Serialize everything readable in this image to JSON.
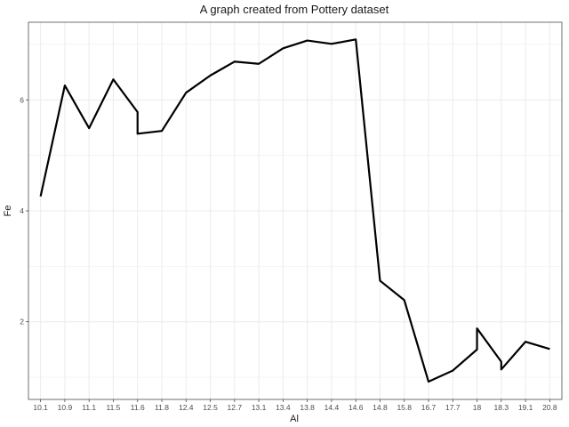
{
  "chart_data": {
    "type": "line",
    "title": "A graph created from Pottery dataset",
    "xlabel": "Al",
    "ylabel": "Fe",
    "x_scale": "categorical",
    "categories": [
      "10.1",
      "10.9",
      "11.1",
      "11.5",
      "11.6",
      "11.8",
      "12.4",
      "12.5",
      "12.7",
      "13.1",
      "13.4",
      "13.8",
      "14.4",
      "14.6",
      "14.8",
      "15.8",
      "16.7",
      "17.7",
      "18",
      "18.3",
      "19.1",
      "20.8"
    ],
    "points": [
      {
        "x": "10.1",
        "y": 4.26
      },
      {
        "x": "10.9",
        "y": 6.26
      },
      {
        "x": "11.1",
        "y": 5.49
      },
      {
        "x": "11.5",
        "y": 6.37
      },
      {
        "x": "11.6",
        "y": 5.78
      },
      {
        "x": "11.6",
        "y": 5.39
      },
      {
        "x": "11.8",
        "y": 5.44
      },
      {
        "x": "12.4",
        "y": 6.13
      },
      {
        "x": "12.5",
        "y": 6.44
      },
      {
        "x": "12.7",
        "y": 6.69
      },
      {
        "x": "13.1",
        "y": 6.65
      },
      {
        "x": "13.4",
        "y": 6.93
      },
      {
        "x": "13.8",
        "y": 7.07
      },
      {
        "x": "14.4",
        "y": 7.01
      },
      {
        "x": "14.6",
        "y": 7.09
      },
      {
        "x": "14.8",
        "y": 2.74
      },
      {
        "x": "15.8",
        "y": 2.39
      },
      {
        "x": "16.7",
        "y": 0.92
      },
      {
        "x": "17.7",
        "y": 1.12
      },
      {
        "x": "18",
        "y": 1.5
      },
      {
        "x": "18",
        "y": 1.88
      },
      {
        "x": "18.3",
        "y": 1.28
      },
      {
        "x": "18.3",
        "y": 1.14
      },
      {
        "x": "19.1",
        "y": 1.64
      },
      {
        "x": "20.8",
        "y": 1.51
      }
    ],
    "y_ticks": [
      2,
      4,
      6
    ],
    "ylim": [
      0.6,
      7.4
    ],
    "grid": true,
    "legend": "none",
    "colors": {
      "line": "#000000",
      "grid": "#ebebeb",
      "panel_border": "#333333",
      "background": "#ffffff"
    }
  }
}
